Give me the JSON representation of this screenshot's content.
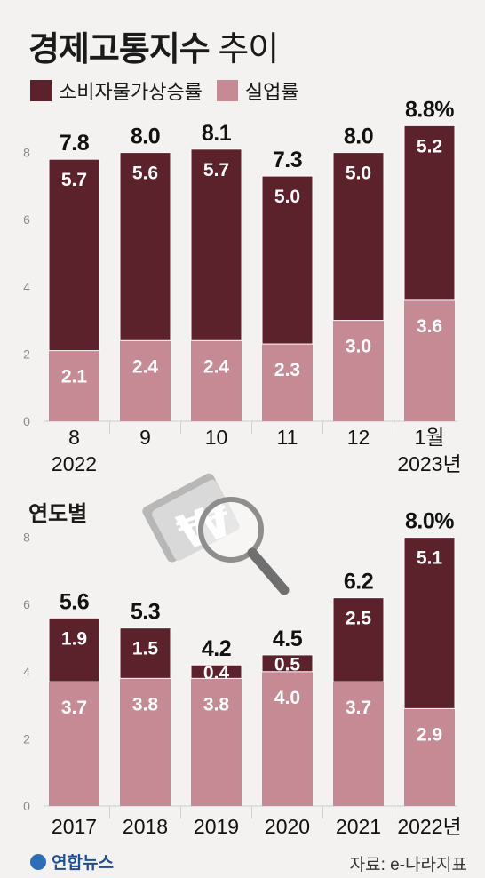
{
  "title": {
    "main": "경제고통지수",
    "sub": "추이"
  },
  "legend": [
    {
      "label": "소비자물가상승률",
      "color": "#5b222b"
    },
    {
      "label": "실업률",
      "color": "#c58a94"
    }
  ],
  "section_label": "연도별",
  "footer": {
    "logo": "연합뉴스",
    "source": "자료: e-나라지표"
  },
  "colors": {
    "cpi": "#5b222b",
    "unemployment": "#c58a94",
    "background": "#f3f2f0"
  },
  "chart_data": [
    {
      "type": "bar",
      "stacked": true,
      "categories": [
        "8\n2022",
        "9",
        "10",
        "11",
        "12",
        "1월\n2023년"
      ],
      "series": [
        {
          "name": "실업률",
          "values": [
            2.1,
            2.4,
            2.4,
            2.3,
            3.0,
            3.6
          ]
        },
        {
          "name": "소비자물가상승률",
          "values": [
            5.7,
            5.6,
            5.7,
            5.0,
            5.0,
            5.2
          ]
        }
      ],
      "totals": [
        "7.8",
        "8.0",
        "8.1",
        "7.3",
        "8.0",
        "8.8%"
      ],
      "segment_labels": {
        "실업률": [
          "2.1",
          "2.4",
          "2.4",
          "2.3",
          "3.0",
          "3.6"
        ],
        "소비자물가상승률": [
          "5.7",
          "5.6",
          "5.7",
          "5.0",
          "5.0",
          "5.2"
        ]
      },
      "yticks": [
        "0",
        "2",
        "4",
        "6",
        "8"
      ],
      "ylim": [
        0,
        8.8
      ]
    },
    {
      "type": "bar",
      "stacked": true,
      "categories": [
        "2017",
        "2018",
        "2019",
        "2020",
        "2021",
        "2022년"
      ],
      "series": [
        {
          "name": "실업률",
          "values": [
            3.7,
            3.8,
            3.8,
            4.0,
            3.7,
            2.9
          ]
        },
        {
          "name": "소비자물가상승률",
          "values": [
            1.9,
            1.5,
            0.4,
            0.5,
            2.5,
            5.1
          ]
        }
      ],
      "totals": [
        "5.6",
        "5.3",
        "4.2",
        "4.5",
        "6.2",
        "8.0%"
      ],
      "segment_labels": {
        "실업률": [
          "3.7",
          "3.8",
          "3.8",
          "4.0",
          "3.7",
          "2.9"
        ],
        "소비자물가상승률": [
          "1.9",
          "1.5",
          "0.4",
          "0.5",
          "2.5",
          "5.1"
        ]
      },
      "yticks": [
        "0",
        "2",
        "4",
        "6",
        "8"
      ],
      "ylim": [
        0,
        8.0
      ]
    }
  ]
}
